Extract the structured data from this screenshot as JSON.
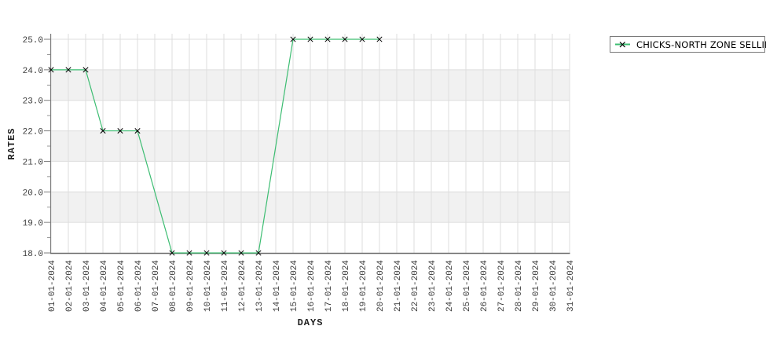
{
  "chart_data": {
    "type": "line",
    "title": "",
    "xlabel": "DAYS",
    "ylabel": "RATES",
    "categories": [
      "01-01-2024",
      "02-01-2024",
      "03-01-2024",
      "04-01-2024",
      "05-01-2024",
      "06-01-2024",
      "07-01-2024",
      "08-01-2024",
      "09-01-2024",
      "10-01-2024",
      "11-01-2024",
      "12-01-2024",
      "13-01-2024",
      "14-01-2024",
      "15-01-2024",
      "16-01-2024",
      "17-01-2024",
      "18-01-2024",
      "19-01-2024",
      "20-01-2024",
      "21-01-2024",
      "22-01-2024",
      "23-01-2024",
      "24-01-2024",
      "25-01-2024",
      "26-01-2024",
      "27-01-2024",
      "28-01-2024",
      "29-01-2024",
      "30-01-2024",
      "31-01-2024"
    ],
    "series": [
      {
        "name": "CHICKS-NORTH ZONE SELLING",
        "color": "#3dbd72",
        "marker": "x",
        "marker_color": "#000000",
        "values": [
          24,
          24,
          24,
          22,
          22,
          22,
          null,
          18,
          18,
          18,
          18,
          18,
          18,
          null,
          25,
          25,
          25,
          25,
          25,
          25,
          null,
          null,
          null,
          null,
          null,
          null,
          null,
          null,
          null,
          null,
          null
        ]
      }
    ],
    "ylim": [
      18,
      25
    ],
    "y_tick_step": 1,
    "y_tick_labels": [
      "18.0",
      "19.0",
      "20.0",
      "21.0",
      "22.0",
      "23.0",
      "24.0",
      "25.0"
    ],
    "grid": true,
    "legend_position": "top-right-outside",
    "colors": {
      "band_fill": "#f1f1f1",
      "grid_line": "#dedede",
      "axis_line": "#7d7d7d",
      "tick_label": "#3a3a3a"
    }
  }
}
